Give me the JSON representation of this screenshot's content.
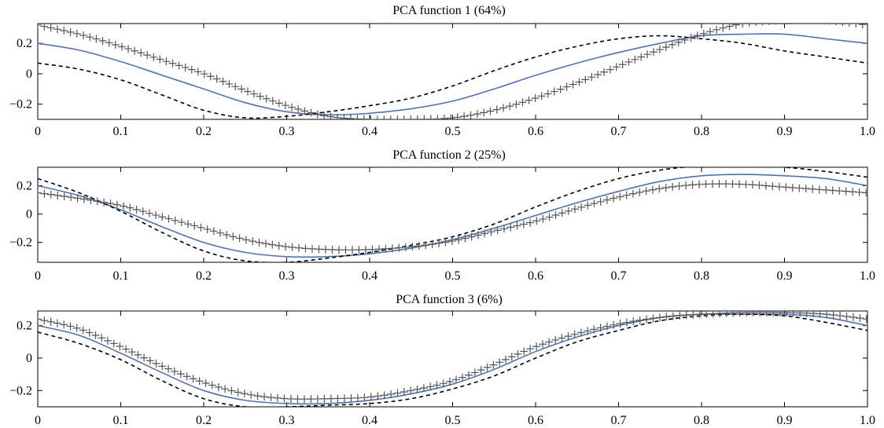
{
  "colors": {
    "mean_curve": "#4a72c4",
    "perturbation": "#000000",
    "axes": "#000000",
    "plus_marker": "#555555"
  },
  "chart_data": [
    {
      "type": "line",
      "title": "PCA function 1 (64%)",
      "xlabel": "",
      "ylabel": "",
      "xlim": [
        0,
        1
      ],
      "ylim": [
        -0.3,
        0.33
      ],
      "xticks": [
        0,
        0.1,
        0.2,
        0.3,
        0.4,
        0.5,
        0.6,
        0.7,
        0.8,
        0.9,
        1.0
      ],
      "xtick_labels": [
        "0",
        "0.1",
        "0.2",
        "0.3",
        "0.4",
        "0.5",
        "0.6",
        "0.7",
        "0.8",
        "0.9",
        "1.0"
      ],
      "yticks": [
        -0.2,
        0,
        0.2
      ],
      "ytick_labels": [
        "−0.2",
        "0",
        "0.2"
      ],
      "grid": false,
      "series": [
        {
          "style": "solid",
          "color": "#4a72c4",
          "x": [
            0,
            0.05,
            0.1,
            0.15,
            0.2,
            0.25,
            0.3,
            0.35,
            0.4,
            0.45,
            0.5,
            0.55,
            0.6,
            0.65,
            0.7,
            0.75,
            0.8,
            0.85,
            0.9,
            0.95,
            1.0
          ],
          "y": [
            0.2,
            0.155,
            0.08,
            -0.01,
            -0.1,
            -0.19,
            -0.25,
            -0.27,
            -0.26,
            -0.23,
            -0.18,
            -0.1,
            -0.01,
            0.07,
            0.14,
            0.2,
            0.25,
            0.26,
            0.26,
            0.23,
            0.2
          ]
        },
        {
          "style": "dashed",
          "color": "#000000",
          "x": [
            0,
            0.05,
            0.1,
            0.15,
            0.2,
            0.25,
            0.3,
            0.35,
            0.4,
            0.45,
            0.5,
            0.55,
            0.6,
            0.65,
            0.7,
            0.75,
            0.8,
            0.85,
            0.9,
            0.95,
            1.0
          ],
          "y": [
            0.07,
            0.03,
            -0.04,
            -0.14,
            -0.24,
            -0.29,
            -0.28,
            -0.25,
            -0.21,
            -0.16,
            -0.08,
            0.02,
            0.11,
            0.18,
            0.23,
            0.25,
            0.23,
            0.2,
            0.15,
            0.11,
            0.07
          ]
        },
        {
          "style": "plus",
          "color": "#555555",
          "x": [
            0,
            0.05,
            0.1,
            0.15,
            0.2,
            0.25,
            0.3,
            0.35,
            0.4,
            0.45,
            0.5,
            0.55,
            0.6,
            0.65,
            0.7,
            0.75,
            0.8,
            0.85,
            0.9,
            0.95,
            1.0
          ],
          "y": [
            0.32,
            0.26,
            0.18,
            0.09,
            0.0,
            -0.11,
            -0.21,
            -0.28,
            -0.3,
            -0.3,
            -0.29,
            -0.24,
            -0.16,
            -0.06,
            0.05,
            0.16,
            0.26,
            0.33,
            0.35,
            0.35,
            0.32
          ]
        }
      ]
    },
    {
      "type": "line",
      "title": "PCA function 2 (25%)",
      "xlabel": "",
      "ylabel": "",
      "xlim": [
        0,
        1
      ],
      "ylim": [
        -0.34,
        0.33
      ],
      "xticks": [
        0,
        0.1,
        0.2,
        0.3,
        0.4,
        0.5,
        0.6,
        0.7,
        0.8,
        0.9,
        1.0
      ],
      "xtick_labels": [
        "0",
        "0.1",
        "0.2",
        "0.3",
        "0.4",
        "0.5",
        "0.6",
        "0.7",
        "0.8",
        "0.9",
        "1.0"
      ],
      "yticks": [
        -0.2,
        0,
        0.2
      ],
      "ytick_labels": [
        "−0.2",
        "0",
        "0.2"
      ],
      "grid": false,
      "series": [
        {
          "style": "solid",
          "color": "#4a72c4",
          "x": [
            0,
            0.05,
            0.1,
            0.15,
            0.2,
            0.25,
            0.3,
            0.35,
            0.4,
            0.45,
            0.5,
            0.55,
            0.6,
            0.65,
            0.7,
            0.75,
            0.8,
            0.85,
            0.9,
            0.95,
            1.0
          ],
          "y": [
            0.2,
            0.13,
            0.03,
            -0.09,
            -0.2,
            -0.27,
            -0.3,
            -0.3,
            -0.28,
            -0.24,
            -0.18,
            -0.1,
            -0.01,
            0.08,
            0.16,
            0.23,
            0.27,
            0.28,
            0.27,
            0.25,
            0.2
          ]
        },
        {
          "style": "dashed",
          "color": "#000000",
          "x": [
            0,
            0.05,
            0.1,
            0.15,
            0.2,
            0.25,
            0.3,
            0.35,
            0.4,
            0.45,
            0.5,
            0.55,
            0.6,
            0.65,
            0.7,
            0.75,
            0.8,
            0.85,
            0.9,
            0.95,
            1.0
          ],
          "y": [
            0.25,
            0.15,
            0.02,
            -0.13,
            -0.26,
            -0.33,
            -0.34,
            -0.31,
            -0.27,
            -0.22,
            -0.16,
            -0.07,
            0.05,
            0.16,
            0.25,
            0.31,
            0.34,
            0.34,
            0.33,
            0.3,
            0.26
          ]
        },
        {
          "style": "plus",
          "color": "#555555",
          "x": [
            0,
            0.05,
            0.1,
            0.15,
            0.2,
            0.25,
            0.3,
            0.35,
            0.4,
            0.45,
            0.5,
            0.55,
            0.6,
            0.65,
            0.7,
            0.75,
            0.8,
            0.85,
            0.9,
            0.95,
            1.0
          ],
          "y": [
            0.15,
            0.11,
            0.06,
            -0.02,
            -0.1,
            -0.18,
            -0.23,
            -0.25,
            -0.25,
            -0.23,
            -0.19,
            -0.12,
            -0.05,
            0.04,
            0.12,
            0.18,
            0.21,
            0.21,
            0.19,
            0.17,
            0.15
          ]
        }
      ]
    },
    {
      "type": "line",
      "title": "PCA function 3 (6%)",
      "xlabel": "",
      "ylabel": "",
      "xlim": [
        0,
        1
      ],
      "ylim": [
        -0.3,
        0.29
      ],
      "xticks": [
        0,
        0.1,
        0.2,
        0.3,
        0.4,
        0.5,
        0.6,
        0.7,
        0.8,
        0.9,
        1.0
      ],
      "xtick_labels": [
        "0",
        "0.1",
        "0.2",
        "0.3",
        "0.4",
        "0.5",
        "0.6",
        "0.7",
        "0.8",
        "0.9",
        "1.0"
      ],
      "yticks": [
        -0.2,
        0,
        0.2
      ],
      "ytick_labels": [
        "−0.2",
        "0",
        "0.2"
      ],
      "grid": false,
      "series": [
        {
          "style": "solid",
          "color": "#4a72c4",
          "x": [
            0,
            0.05,
            0.1,
            0.15,
            0.2,
            0.25,
            0.3,
            0.35,
            0.4,
            0.45,
            0.5,
            0.55,
            0.6,
            0.65,
            0.7,
            0.75,
            0.8,
            0.85,
            0.9,
            0.95,
            1.0
          ],
          "y": [
            0.2,
            0.14,
            0.03,
            -0.09,
            -0.2,
            -0.26,
            -0.28,
            -0.28,
            -0.26,
            -0.22,
            -0.16,
            -0.07,
            0.04,
            0.13,
            0.2,
            0.25,
            0.27,
            0.27,
            0.27,
            0.25,
            0.2
          ]
        },
        {
          "style": "dashed",
          "color": "#000000",
          "x": [
            0,
            0.05,
            0.1,
            0.15,
            0.2,
            0.25,
            0.3,
            0.35,
            0.4,
            0.45,
            0.5,
            0.55,
            0.6,
            0.65,
            0.7,
            0.75,
            0.8,
            0.85,
            0.9,
            0.95,
            1.0
          ],
          "y": [
            0.16,
            0.09,
            -0.01,
            -0.14,
            -0.25,
            -0.3,
            -0.3,
            -0.29,
            -0.28,
            -0.25,
            -0.19,
            -0.11,
            0.0,
            0.1,
            0.17,
            0.23,
            0.26,
            0.27,
            0.26,
            0.22,
            0.17
          ]
        },
        {
          "style": "plus",
          "color": "#555555",
          "x": [
            0,
            0.05,
            0.1,
            0.15,
            0.2,
            0.25,
            0.3,
            0.35,
            0.4,
            0.45,
            0.5,
            0.55,
            0.6,
            0.65,
            0.7,
            0.75,
            0.8,
            0.85,
            0.9,
            0.95,
            1.0
          ],
          "y": [
            0.24,
            0.18,
            0.07,
            -0.05,
            -0.15,
            -0.22,
            -0.25,
            -0.25,
            -0.24,
            -0.2,
            -0.14,
            -0.04,
            0.07,
            0.15,
            0.21,
            0.25,
            0.27,
            0.28,
            0.28,
            0.27,
            0.24
          ]
        }
      ]
    }
  ]
}
